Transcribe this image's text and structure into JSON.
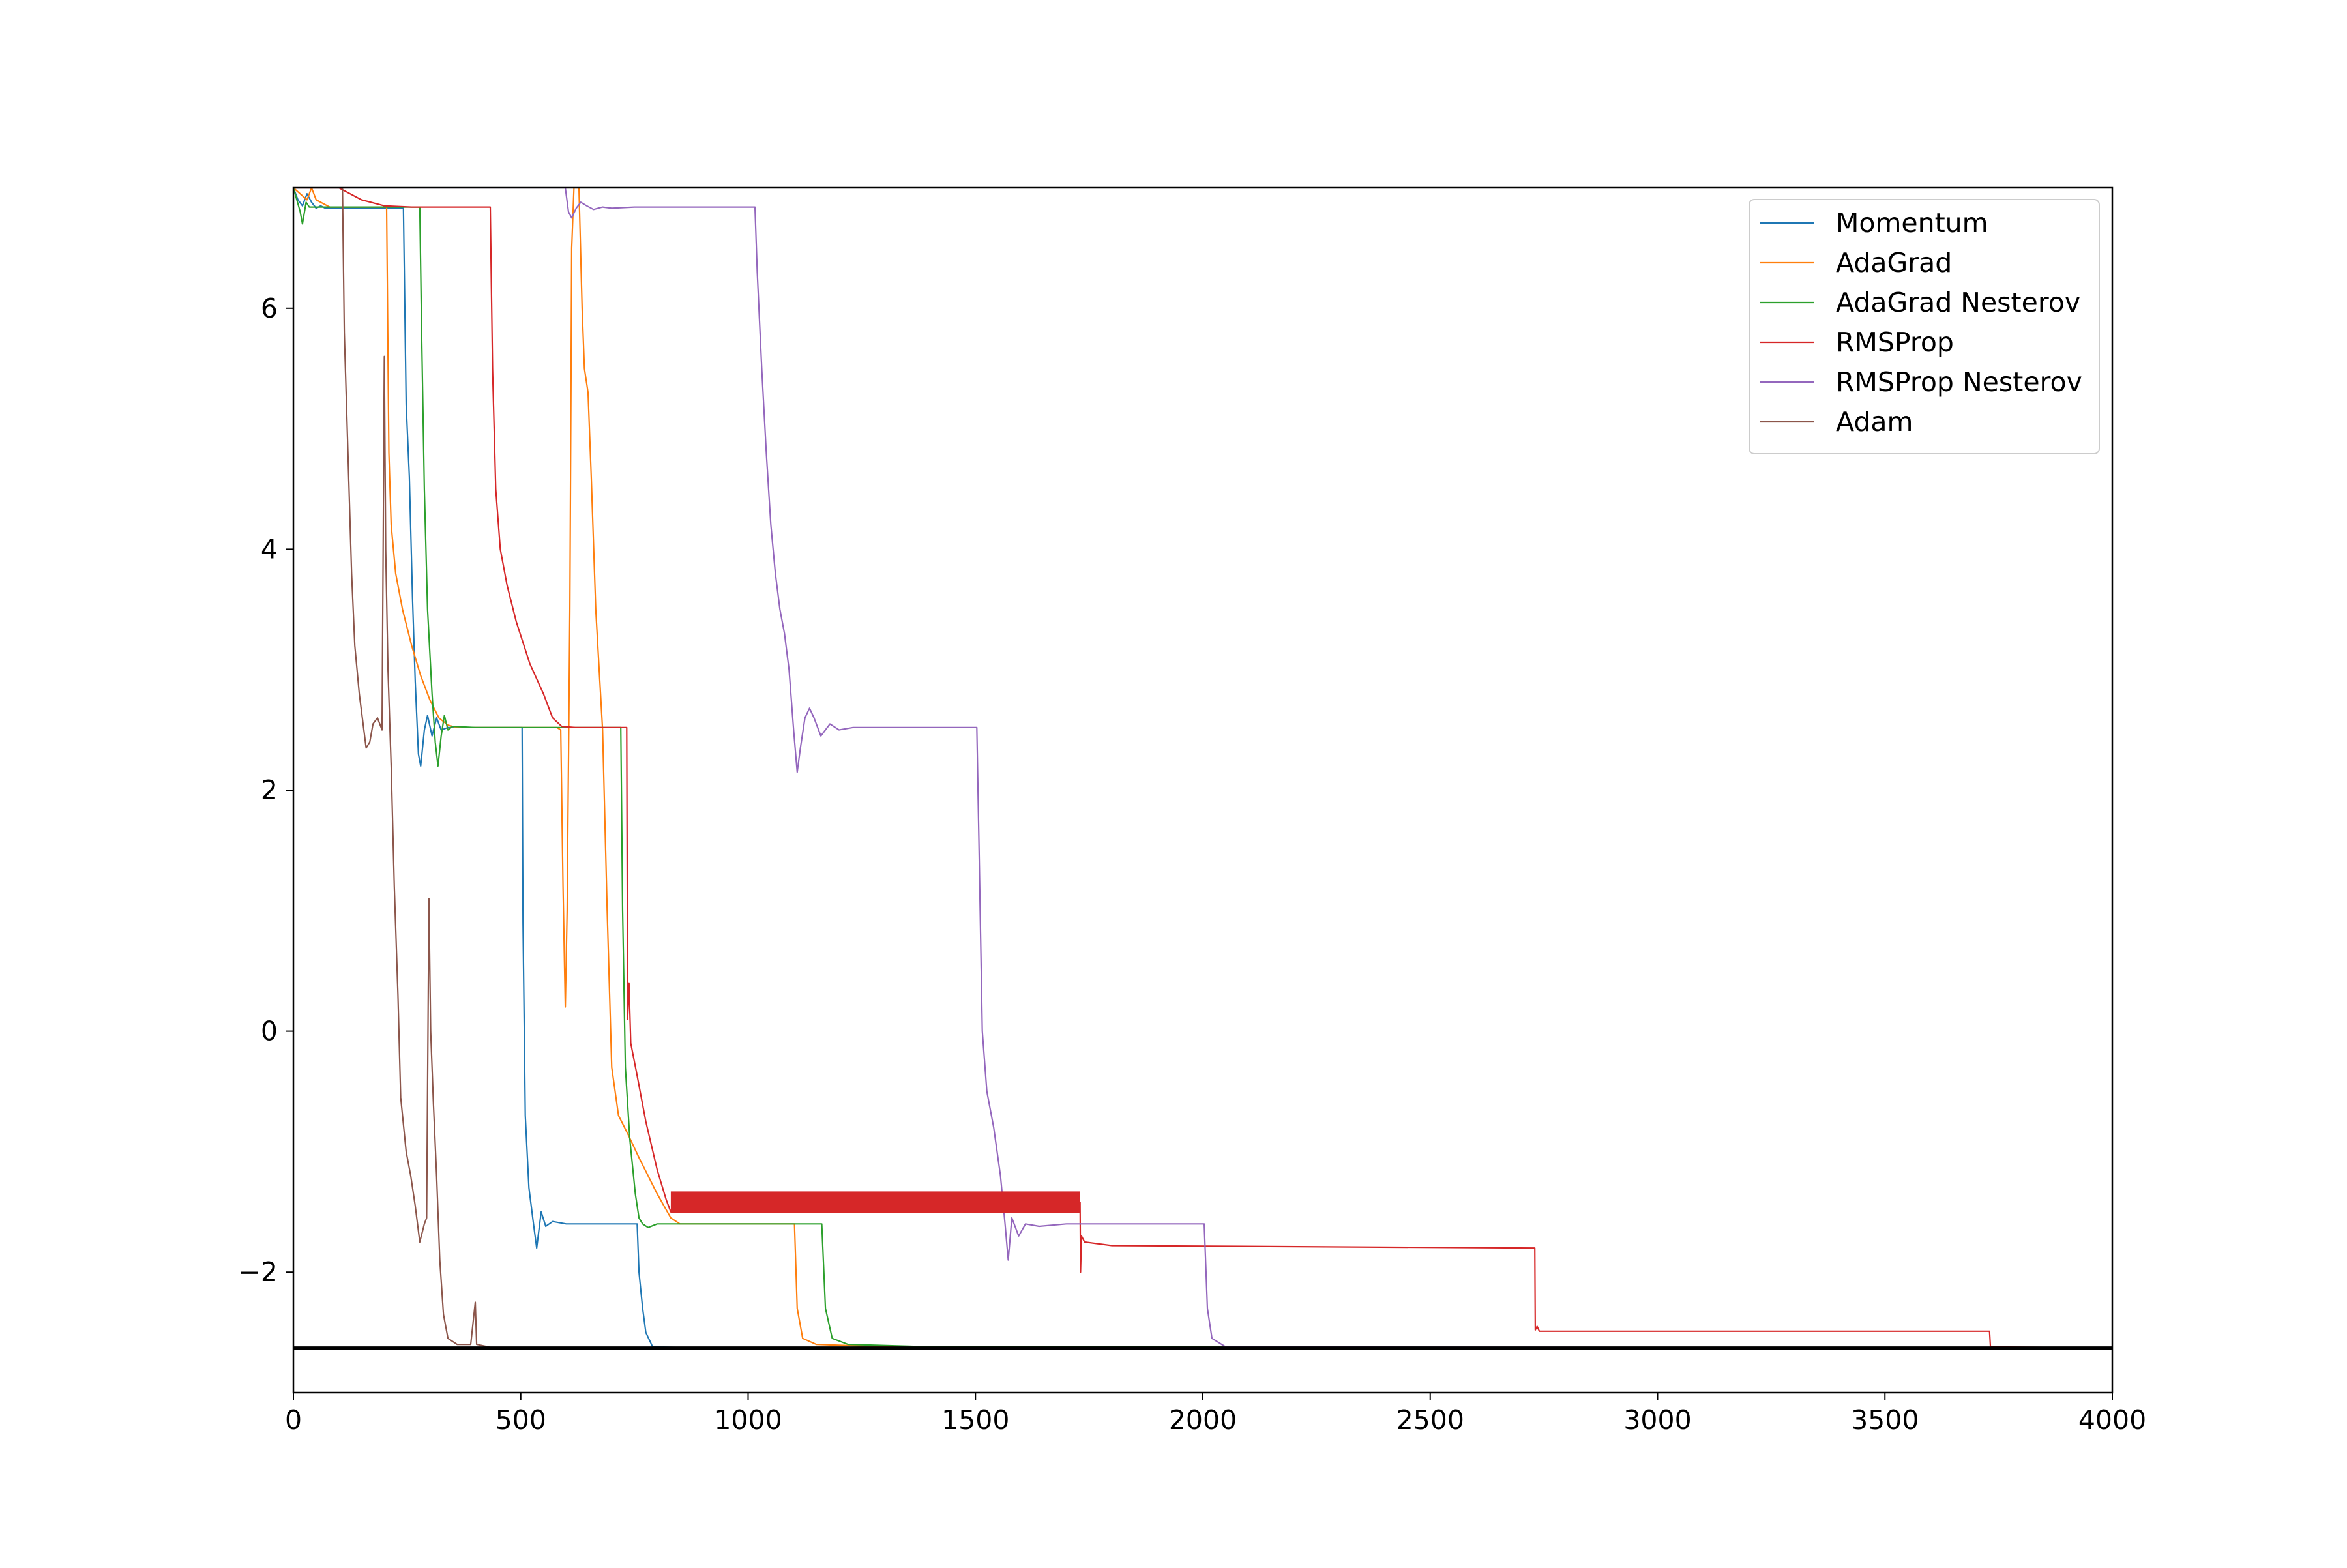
{
  "chart_data": {
    "type": "line",
    "title": "",
    "xlabel": "",
    "ylabel": "",
    "xlim": [
      0,
      4000
    ],
    "ylim": [
      -3.0,
      7.0
    ],
    "xticks": [
      0,
      500,
      1000,
      1500,
      2000,
      2500,
      3000,
      3500,
      4000
    ],
    "xtick_labels": [
      "0",
      "500",
      "1000",
      "1500",
      "2000",
      "2500",
      "3000",
      "3500",
      "4000"
    ],
    "yticks": [
      -2,
      0,
      2,
      4,
      6
    ],
    "ytick_labels": [
      "−2",
      "0",
      "2",
      "4",
      "6"
    ],
    "grid": false,
    "legend_position": "top-right",
    "reference_line": {
      "y": -2.63,
      "color": "#000000"
    },
    "series": [
      {
        "name": "Momentum",
        "color": "#1f77b4",
        "points": [
          [
            0,
            7.0
          ],
          [
            10,
            6.9
          ],
          [
            20,
            6.85
          ],
          [
            30,
            6.95
          ],
          [
            40,
            6.88
          ],
          [
            50,
            6.83
          ],
          [
            60,
            6.85
          ],
          [
            70,
            6.83
          ],
          [
            120,
            6.83
          ],
          [
            240,
            6.83
          ],
          [
            242,
            6.83
          ],
          [
            248,
            5.2
          ],
          [
            255,
            4.6
          ],
          [
            262,
            3.6
          ],
          [
            268,
            2.9
          ],
          [
            275,
            2.3
          ],
          [
            280,
            2.2
          ],
          [
            288,
            2.5
          ],
          [
            295,
            2.62
          ],
          [
            305,
            2.45
          ],
          [
            315,
            2.6
          ],
          [
            325,
            2.5
          ],
          [
            340,
            2.52
          ],
          [
            400,
            2.52
          ],
          [
            500,
            2.52
          ],
          [
            503,
            2.52
          ],
          [
            505,
            0.9
          ],
          [
            510,
            -0.7
          ],
          [
            518,
            -1.3
          ],
          [
            528,
            -1.6
          ],
          [
            535,
            -1.8
          ],
          [
            545,
            -1.5
          ],
          [
            555,
            -1.62
          ],
          [
            570,
            -1.58
          ],
          [
            600,
            -1.6
          ],
          [
            700,
            -1.6
          ],
          [
            750,
            -1.6
          ],
          [
            756,
            -1.6
          ],
          [
            760,
            -2.0
          ],
          [
            768,
            -2.3
          ],
          [
            775,
            -2.5
          ],
          [
            790,
            -2.62
          ],
          [
            900,
            -2.63
          ],
          [
            4000,
            -2.63
          ]
        ]
      },
      {
        "name": "AdaGrad",
        "color": "#ff7f0e",
        "points": [
          [
            0,
            7.0
          ],
          [
            30,
            6.9
          ],
          [
            40,
            7.0
          ],
          [
            50,
            6.9
          ],
          [
            80,
            6.84
          ],
          [
            200,
            6.84
          ],
          [
            205,
            6.84
          ],
          [
            210,
            4.8
          ],
          [
            215,
            4.2
          ],
          [
            225,
            3.8
          ],
          [
            240,
            3.5
          ],
          [
            260,
            3.2
          ],
          [
            280,
            2.95
          ],
          [
            300,
            2.75
          ],
          [
            320,
            2.6
          ],
          [
            340,
            2.54
          ],
          [
            360,
            2.52
          ],
          [
            400,
            2.52
          ],
          [
            580,
            2.52
          ],
          [
            588,
            2.5
          ],
          [
            593,
            1.2
          ],
          [
            598,
            0.2
          ],
          [
            602,
            1.0
          ],
          [
            608,
            3.5
          ],
          [
            612,
            6.5
          ],
          [
            617,
            7.0
          ],
          [
            628,
            7.0
          ],
          [
            635,
            6.0
          ],
          [
            640,
            5.5
          ],
          [
            648,
            5.3
          ],
          [
            655,
            4.6
          ],
          [
            665,
            3.5
          ],
          [
            680,
            2.5
          ],
          [
            690,
            1.0
          ],
          [
            700,
            -0.3
          ],
          [
            715,
            -0.7
          ],
          [
            735,
            -0.85
          ],
          [
            760,
            -1.05
          ],
          [
            800,
            -1.35
          ],
          [
            830,
            -1.55
          ],
          [
            850,
            -1.6
          ],
          [
            900,
            -1.6
          ],
          [
            1100,
            -1.6
          ],
          [
            1102,
            -1.6
          ],
          [
            1108,
            -2.3
          ],
          [
            1120,
            -2.55
          ],
          [
            1150,
            -2.6
          ],
          [
            1300,
            -2.62
          ],
          [
            4000,
            -2.63
          ]
        ]
      },
      {
        "name": "AdaGrad Nesterov",
        "color": "#2ca02c",
        "points": [
          [
            0,
            7.0
          ],
          [
            15,
            6.8
          ],
          [
            20,
            6.7
          ],
          [
            28,
            6.88
          ],
          [
            35,
            6.84
          ],
          [
            100,
            6.84
          ],
          [
            275,
            6.84
          ],
          [
            278,
            6.84
          ],
          [
            282,
            5.8
          ],
          [
            288,
            4.5
          ],
          [
            295,
            3.5
          ],
          [
            305,
            2.8
          ],
          [
            312,
            2.4
          ],
          [
            318,
            2.2
          ],
          [
            325,
            2.45
          ],
          [
            332,
            2.62
          ],
          [
            340,
            2.5
          ],
          [
            350,
            2.53
          ],
          [
            400,
            2.52
          ],
          [
            717,
            2.52
          ],
          [
            720,
            2.52
          ],
          [
            724,
            1.0
          ],
          [
            730,
            -0.3
          ],
          [
            740,
            -0.9
          ],
          [
            752,
            -1.35
          ],
          [
            760,
            -1.55
          ],
          [
            768,
            -1.6
          ],
          [
            780,
            -1.63
          ],
          [
            800,
            -1.6
          ],
          [
            1158,
            -1.6
          ],
          [
            1162,
            -1.6
          ],
          [
            1170,
            -2.3
          ],
          [
            1185,
            -2.55
          ],
          [
            1220,
            -2.6
          ],
          [
            1400,
            -2.62
          ],
          [
            4000,
            -2.63
          ]
        ]
      },
      {
        "name": "RMSProp",
        "color": "#d62728",
        "points": [
          [
            0,
            7.0
          ],
          [
            100,
            7.0
          ],
          [
            150,
            6.9
          ],
          [
            200,
            6.85
          ],
          [
            260,
            6.84
          ],
          [
            430,
            6.84
          ],
          [
            433,
            6.84
          ],
          [
            438,
            5.5
          ],
          [
            445,
            4.5
          ],
          [
            455,
            4.0
          ],
          [
            470,
            3.7
          ],
          [
            490,
            3.4
          ],
          [
            520,
            3.05
          ],
          [
            550,
            2.8
          ],
          [
            570,
            2.6
          ],
          [
            590,
            2.53
          ],
          [
            620,
            2.52
          ],
          [
            730,
            2.52
          ],
          [
            733,
            2.52
          ],
          [
            735,
            0.1
          ],
          [
            738,
            0.4
          ],
          [
            742,
            -0.1
          ],
          [
            755,
            -0.35
          ],
          [
            775,
            -0.75
          ],
          [
            800,
            -1.15
          ],
          [
            820,
            -1.4
          ],
          [
            830,
            -1.5
          ],
          [
            860,
            -1.4
          ],
          [
            1000,
            -1.42
          ],
          [
            1500,
            -1.42
          ],
          [
            1730,
            -1.42
          ],
          [
            1731,
            -2.0
          ],
          [
            1733,
            -1.7
          ],
          [
            1740,
            -1.75
          ],
          [
            1800,
            -1.78
          ],
          [
            2730,
            -1.8
          ],
          [
            2731,
            -2.48
          ],
          [
            2735,
            -2.45
          ],
          [
            2740,
            -2.49
          ],
          [
            3000,
            -2.49
          ],
          [
            3730,
            -2.49
          ],
          [
            3732,
            -2.62
          ],
          [
            4000,
            -2.63
          ]
        ]
      },
      {
        "name": "RMSProp Nesterov",
        "color": "#9467bd",
        "points": [
          [
            0,
            7.0
          ],
          [
            590,
            7.0
          ],
          [
            598,
            7.0
          ],
          [
            605,
            6.8
          ],
          [
            612,
            6.75
          ],
          [
            622,
            6.83
          ],
          [
            632,
            6.88
          ],
          [
            645,
            6.85
          ],
          [
            660,
            6.82
          ],
          [
            680,
            6.84
          ],
          [
            700,
            6.83
          ],
          [
            750,
            6.84
          ],
          [
            1010,
            6.84
          ],
          [
            1015,
            6.84
          ],
          [
            1020,
            6.3
          ],
          [
            1030,
            5.5
          ],
          [
            1040,
            4.8
          ],
          [
            1050,
            4.2
          ],
          [
            1060,
            3.8
          ],
          [
            1070,
            3.5
          ],
          [
            1080,
            3.3
          ],
          [
            1090,
            3.0
          ],
          [
            1100,
            2.5
          ],
          [
            1108,
            2.15
          ],
          [
            1115,
            2.35
          ],
          [
            1125,
            2.6
          ],
          [
            1135,
            2.68
          ],
          [
            1145,
            2.6
          ],
          [
            1160,
            2.45
          ],
          [
            1180,
            2.55
          ],
          [
            1200,
            2.5
          ],
          [
            1230,
            2.52
          ],
          [
            1500,
            2.52
          ],
          [
            1503,
            2.52
          ],
          [
            1508,
            1.5
          ],
          [
            1515,
            0.0
          ],
          [
            1525,
            -0.5
          ],
          [
            1540,
            -0.8
          ],
          [
            1555,
            -1.2
          ],
          [
            1565,
            -1.6
          ],
          [
            1572,
            -1.9
          ],
          [
            1580,
            -1.55
          ],
          [
            1595,
            -1.7
          ],
          [
            1610,
            -1.6
          ],
          [
            1640,
            -1.62
          ],
          [
            1700,
            -1.6
          ],
          [
            2000,
            -1.6
          ],
          [
            2003,
            -1.6
          ],
          [
            2010,
            -2.3
          ],
          [
            2020,
            -2.55
          ],
          [
            2050,
            -2.62
          ],
          [
            4000,
            -2.63
          ]
        ]
      },
      {
        "name": "Adam",
        "color": "#8c564b",
        "points": [
          [
            0,
            7.0
          ],
          [
            100,
            7.0
          ],
          [
            108,
            7.0
          ],
          [
            112,
            5.8
          ],
          [
            120,
            4.8
          ],
          [
            128,
            3.8
          ],
          [
            135,
            3.2
          ],
          [
            145,
            2.8
          ],
          [
            160,
            2.35
          ],
          [
            168,
            2.4
          ],
          [
            175,
            2.55
          ],
          [
            185,
            2.6
          ],
          [
            195,
            2.5
          ],
          [
            200,
            5.6
          ],
          [
            203,
            4.0
          ],
          [
            208,
            3.0
          ],
          [
            215,
            2.2
          ],
          [
            222,
            1.2
          ],
          [
            230,
            0.3
          ],
          [
            236,
            -0.55
          ],
          [
            240,
            -0.7
          ],
          [
            248,
            -1.0
          ],
          [
            258,
            -1.2
          ],
          [
            268,
            -1.45
          ],
          [
            278,
            -1.75
          ],
          [
            288,
            -1.6
          ],
          [
            293,
            -1.55
          ],
          [
            298,
            1.1
          ],
          [
            302,
            0.0
          ],
          [
            308,
            -0.6
          ],
          [
            315,
            -1.2
          ],
          [
            322,
            -1.9
          ],
          [
            330,
            -2.35
          ],
          [
            340,
            -2.55
          ],
          [
            360,
            -2.6
          ],
          [
            390,
            -2.6
          ],
          [
            400,
            -2.25
          ],
          [
            403,
            -2.6
          ],
          [
            440,
            -2.63
          ],
          [
            4000,
            -2.63
          ]
        ]
      }
    ]
  }
}
